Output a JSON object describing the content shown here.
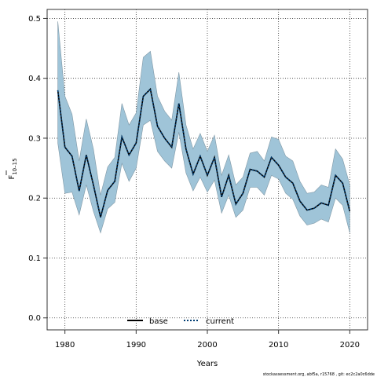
{
  "chart_data": {
    "type": "line",
    "xlabel": "Years",
    "ylabel_main": "F",
    "ylabel_sub": "10–15",
    "xlim": [
      1977.5,
      2022.5
    ],
    "ylim": [
      -0.02,
      0.515
    ],
    "xticks": [
      1980,
      1990,
      2000,
      2010,
      2020
    ],
    "yticks": [
      0.0,
      0.1,
      0.2,
      0.3,
      0.4,
      0.5
    ],
    "ytick_labels": [
      "0.0",
      "0.1",
      "0.2",
      "0.3",
      "0.4",
      "0.5"
    ],
    "x": [
      1979,
      1980,
      1981,
      1982,
      1983,
      1984,
      1985,
      1986,
      1987,
      1988,
      1989,
      1990,
      1991,
      1992,
      1993,
      1994,
      1995,
      1996,
      1997,
      1998,
      1999,
      2000,
      2001,
      2002,
      2003,
      2004,
      2005,
      2006,
      2007,
      2008,
      2009,
      2010,
      2011,
      2012,
      2013,
      2014,
      2015,
      2016,
      2017,
      2018,
      2019,
      2020
    ],
    "series": [
      {
        "name": "base",
        "color": "#000000",
        "values": [
          0.38,
          0.285,
          0.27,
          0.212,
          0.272,
          0.222,
          0.168,
          0.213,
          0.228,
          0.302,
          0.272,
          0.292,
          0.37,
          0.382,
          0.32,
          0.3,
          0.285,
          0.358,
          0.282,
          0.24,
          0.27,
          0.238,
          0.268,
          0.202,
          0.238,
          0.19,
          0.208,
          0.248,
          0.245,
          0.235,
          0.268,
          0.255,
          0.235,
          0.225,
          0.195,
          0.18,
          0.183,
          0.192,
          0.188,
          0.238,
          0.225,
          0.178
        ]
      },
      {
        "name": "current",
        "color": "#003d73",
        "values": [
          0.38,
          0.285,
          0.27,
          0.212,
          0.272,
          0.222,
          0.168,
          0.213,
          0.228,
          0.302,
          0.272,
          0.292,
          0.37,
          0.382,
          0.32,
          0.3,
          0.285,
          0.358,
          0.282,
          0.24,
          0.27,
          0.238,
          0.268,
          0.202,
          0.238,
          0.19,
          0.208,
          0.248,
          0.245,
          0.235,
          0.268,
          0.255,
          0.235,
          0.225,
          0.195,
          0.18,
          0.183,
          0.192,
          0.188,
          0.238,
          0.225,
          0.178
        ]
      }
    ],
    "band_upper": [
      0.495,
      0.37,
      0.34,
      0.262,
      0.332,
      0.282,
      0.205,
      0.252,
      0.268,
      0.358,
      0.322,
      0.342,
      0.435,
      0.445,
      0.37,
      0.345,
      0.33,
      0.41,
      0.322,
      0.282,
      0.308,
      0.278,
      0.305,
      0.238,
      0.272,
      0.222,
      0.235,
      0.275,
      0.278,
      0.262,
      0.302,
      0.298,
      0.27,
      0.262,
      0.228,
      0.208,
      0.21,
      0.222,
      0.218,
      0.282,
      0.265,
      0.222
    ],
    "band_lower": [
      0.292,
      0.208,
      0.21,
      0.172,
      0.222,
      0.178,
      0.142,
      0.182,
      0.193,
      0.258,
      0.228,
      0.25,
      0.322,
      0.33,
      0.278,
      0.262,
      0.25,
      0.31,
      0.242,
      0.212,
      0.235,
      0.21,
      0.23,
      0.175,
      0.205,
      0.168,
      0.18,
      0.218,
      0.218,
      0.205,
      0.238,
      0.232,
      0.208,
      0.198,
      0.17,
      0.155,
      0.158,
      0.165,
      0.16,
      0.2,
      0.188,
      0.142
    ],
    "band_color": "#9fc4d8",
    "grid": true,
    "legend_position": "bottom-center",
    "footer": "stockassessment.org, abf5a, r15768 , git: ec2c2a0c6dde"
  }
}
